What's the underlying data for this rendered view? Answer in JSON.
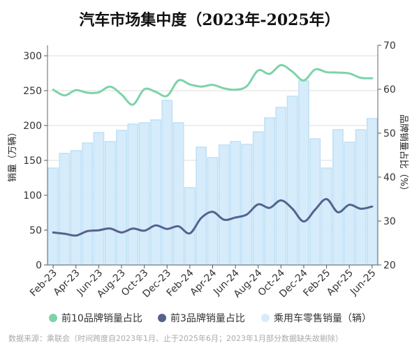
{
  "chart_data": {
    "type": "bar+line",
    "title": "汽车市场集中度（2023年-2025年）",
    "ylabel_left": "销量（万辆）",
    "ylabel_right": "品牌销量占比（%）",
    "ylim_left": [
      0,
      315
    ],
    "ylim_right": [
      20,
      70
    ],
    "yticks_left": [
      0,
      50,
      100,
      150,
      200,
      250,
      300
    ],
    "yticks_right": [
      20,
      30,
      40,
      50,
      60,
      70
    ],
    "grid": true,
    "legend_position": "bottom",
    "categories": [
      "Feb-23",
      "Mar-23",
      "Apr-23",
      "May-23",
      "Jun-23",
      "Jul-23",
      "Aug-23",
      "Sep-23",
      "Oct-23",
      "Nov-23",
      "Dec-23",
      "Jan-24",
      "Feb-24",
      "Mar-24",
      "Apr-24",
      "May-24",
      "Jun-24",
      "Jul-24",
      "Aug-24",
      "Sep-24",
      "Oct-24",
      "Nov-24",
      "Dec-24",
      "Jan-25",
      "Feb-25",
      "Mar-25",
      "Apr-25",
      "May-25",
      "Jun-25"
    ],
    "xtick_labels": [
      "Feb-23",
      "Apr-23",
      "Jun-23",
      "Aug-23",
      "Oct-23",
      "Dec-23",
      "Feb-24",
      "Apr-24",
      "Jun-24",
      "Aug-24",
      "Oct-24",
      "Dec-24",
      "Feb-25",
      "Apr-25",
      "Jun-25"
    ],
    "series": [
      {
        "name": "前10品牌销量占比",
        "type": "line",
        "axis": "right",
        "color": "#7dd3a8",
        "values": [
          59.9,
          58.6,
          59.8,
          59.2,
          59.3,
          60.6,
          58.8,
          56.5,
          60.0,
          59.4,
          58.5,
          62.0,
          61.1,
          60.6,
          61.0,
          60.2,
          59.9,
          60.7,
          64.3,
          63.5,
          65.5,
          64.0,
          62.0,
          64.5,
          63.9,
          63.8,
          63.6,
          62.6,
          62.5
        ]
      },
      {
        "name": "前3品牌销量占比",
        "type": "line",
        "axis": "right",
        "color": "#56628e",
        "values": [
          27.4,
          27.1,
          26.7,
          27.7,
          27.9,
          28.3,
          27.4,
          28.3,
          27.8,
          29.0,
          28.2,
          28.8,
          27.2,
          30.7,
          32.1,
          30.3,
          30.8,
          31.5,
          33.8,
          33.0,
          34.7,
          32.8,
          29.9,
          32.6,
          35.0,
          32.0,
          33.7,
          32.8,
          33.3
        ]
      },
      {
        "name": "乘用车零售销量（辆）",
        "type": "bar",
        "axis": "left",
        "color": "#d6ecfa",
        "values": [
          139,
          160,
          164,
          175,
          190,
          177,
          193,
          202,
          204,
          208,
          236,
          204,
          111,
          169,
          154,
          172,
          177,
          173,
          191,
          211,
          226,
          242,
          264,
          181,
          139,
          194,
          176,
          194,
          210
        ]
      }
    ],
    "footnote": "数据来源：乘联会（时间跨度自2023年1月、止于2025年6月；2023年1月部分数据缺失故剔除）"
  }
}
